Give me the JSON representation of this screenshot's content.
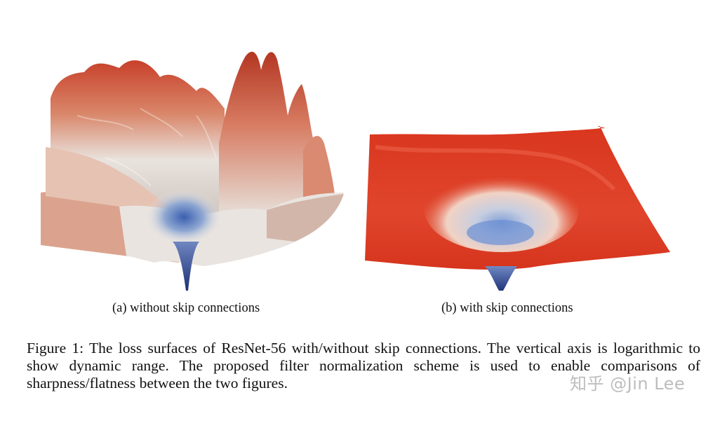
{
  "figures": [
    {
      "id": "a",
      "caption": "(a) without skip connections",
      "colors": {
        "high": "#c8402a",
        "mid": "#e8e2dc",
        "low": "#2a3f8f"
      }
    },
    {
      "id": "b",
      "caption": "(b) with skip connections",
      "colors": {
        "high": "#dd3c22",
        "mid": "#f2e7df",
        "low": "#3a5aa8"
      }
    }
  ],
  "figure_caption": "Figure 1: The loss surfaces of ResNet-56 with/without skip connections. The vertical axis is logarithmic to show dynamic range. The proposed filter normalization scheme is used to enable comparisons of sharpness/flatness between the two figures.",
  "watermark": "知乎 @Jin Lee"
}
